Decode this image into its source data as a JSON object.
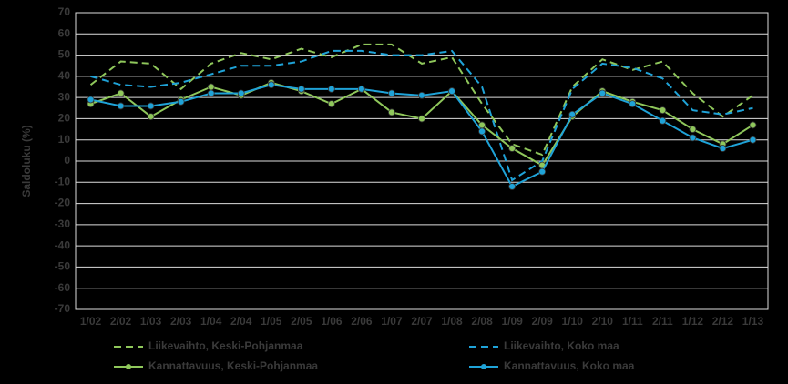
{
  "chart_data": {
    "type": "line",
    "y_label": "Saldoluku (%)",
    "categories": [
      "1/02",
      "2/02",
      "1/03",
      "2/03",
      "1/04",
      "2/04",
      "1/05",
      "2/05",
      "1/06",
      "2/06",
      "1/07",
      "2/07",
      "1/08",
      "2/08",
      "1/09",
      "2/09",
      "1/10",
      "2/10",
      "1/11",
      "2/11",
      "1/12",
      "2/12",
      "1/13"
    ],
    "series": [
      {
        "name": "Liikevaihto, Keski-Pohjanmaa",
        "color": "#8fc75b",
        "dashed": true,
        "markers": false,
        "values": [
          36,
          47,
          46,
          34,
          46,
          51,
          48,
          53,
          49,
          55,
          55,
          46,
          49,
          27,
          8,
          3,
          35,
          48,
          43,
          47,
          32,
          21,
          31
        ]
      },
      {
        "name": "Liikevaihto, Koko maa",
        "color": "#1fa3d8",
        "dashed": true,
        "markers": false,
        "values": [
          40,
          36,
          35,
          37,
          41,
          45,
          45,
          47,
          52,
          52,
          50,
          50,
          52,
          35,
          -9,
          0,
          34,
          46,
          44,
          39,
          24,
          22,
          25
        ]
      },
      {
        "name": "Kannattavuus, Keski-Pohjanmaa",
        "color": "#8fc75b",
        "dashed": false,
        "markers": true,
        "values": [
          27,
          32,
          21,
          29,
          35,
          31,
          37,
          33,
          27,
          34,
          23,
          20,
          33,
          17,
          6,
          -2,
          21,
          33,
          28,
          24,
          15,
          8,
          17
        ]
      },
      {
        "name": "Kannattavuus, Koko maa",
        "color": "#1fa3d8",
        "dashed": false,
        "markers": true,
        "values": [
          29,
          26,
          26,
          28,
          32,
          32,
          36,
          34,
          34,
          34,
          32,
          31,
          33,
          14,
          -12,
          -5,
          22,
          32,
          27,
          19,
          11,
          6,
          10
        ]
      }
    ],
    "ylim": [
      -70,
      70
    ],
    "yticks": [
      -70,
      -60,
      -50,
      -40,
      -30,
      -20,
      -10,
      0,
      10,
      20,
      30,
      40,
      50,
      60,
      70
    ],
    "grid": true
  }
}
